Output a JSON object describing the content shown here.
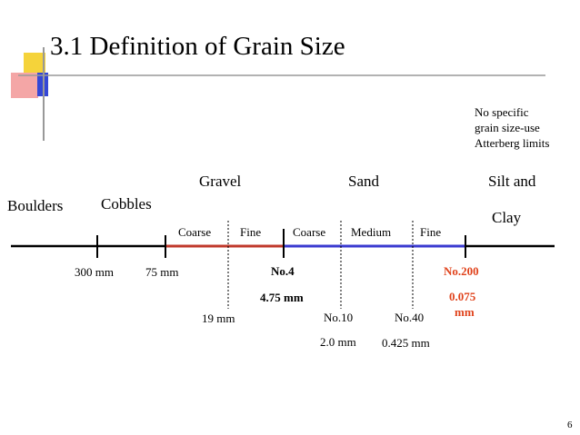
{
  "slide": {
    "title": "3.1 Definition of Grain Size",
    "page_number": "6",
    "note_lines": [
      "No specific",
      "grain size-use",
      "Atterberg limits"
    ]
  },
  "categories": {
    "boulders": "Boulders",
    "cobbles": "Cobbles",
    "gravel": "Gravel",
    "sand": "Sand",
    "silt_clay_1": "Silt and",
    "silt_clay_2": "Clay"
  },
  "subdivisions": {
    "gravel_coarse": "Coarse",
    "gravel_fine": "Fine",
    "sand_coarse": "Coarse",
    "sand_medium": "Medium",
    "sand_fine": "Fine"
  },
  "boundaries": {
    "b300": "300 mm",
    "b75": "75 mm",
    "b19": "19 mm",
    "no4": "No.4",
    "b475": "4.75 mm",
    "no10": "No.10",
    "b20": "2.0 mm",
    "no40": "No.40",
    "b0425": "0.425 mm",
    "no200": "No.200",
    "b0075_1": "0.075",
    "b0075_2": "mm"
  },
  "colors": {
    "gravel_segment": "#c0392b",
    "sand_segment": "#3a3ad0",
    "accent_red": "#e0431c",
    "deco_yellow": "#f5d33a",
    "deco_pink": "#f4a6a6",
    "deco_blue": "#3447d6"
  }
}
